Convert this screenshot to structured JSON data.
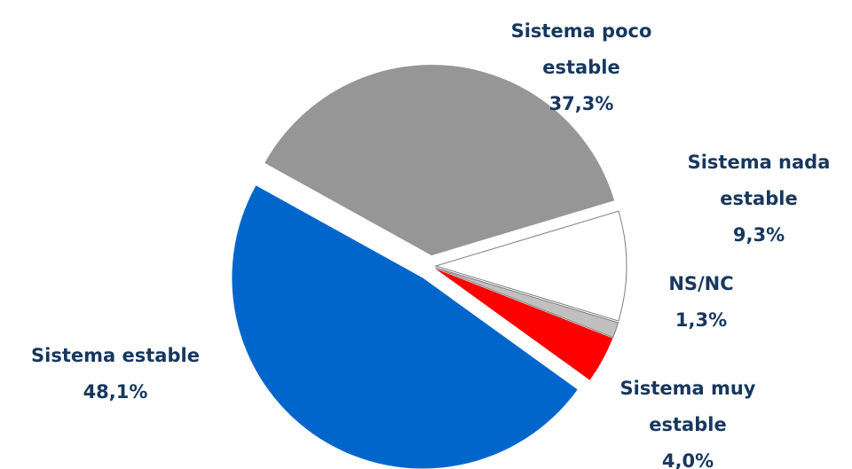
{
  "chart_data": {
    "type": "pie",
    "categories": [
      "Sistema poco estable",
      "Sistema nada estable",
      "NS/NC",
      "Sistema muy estable",
      "Sistema estable"
    ],
    "values": [
      37.3,
      9.3,
      1.3,
      4.0,
      48.1
    ],
    "value_labels": [
      "37,3%",
      "9,3%",
      "1,3%",
      "4,0%",
      "48,1%"
    ],
    "colors": [
      "#969696",
      "#ffffff",
      "#c0c0c0",
      "#ff0000",
      "#0066cc"
    ]
  }
}
